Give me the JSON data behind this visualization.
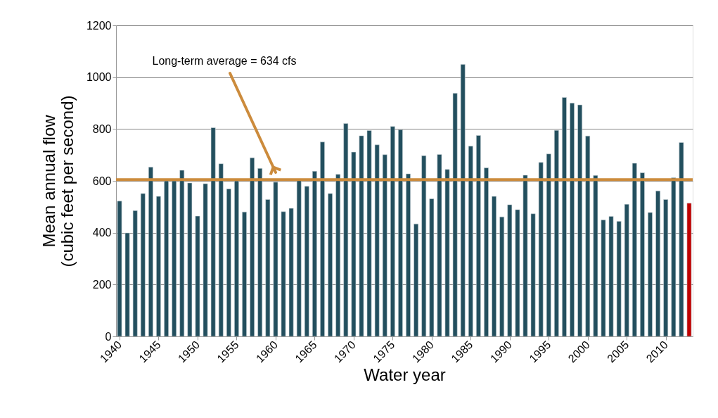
{
  "chart_data": {
    "type": "bar",
    "xlabel": "Water year",
    "ylabel": "Mean annual flow\n(cubic feet per second)",
    "x": [
      1940,
      1941,
      1942,
      1943,
      1944,
      1945,
      1946,
      1947,
      1948,
      1949,
      1950,
      1951,
      1952,
      1953,
      1954,
      1955,
      1956,
      1957,
      1958,
      1959,
      1960,
      1961,
      1962,
      1963,
      1964,
      1965,
      1966,
      1967,
      1968,
      1969,
      1970,
      1971,
      1972,
      1973,
      1974,
      1975,
      1976,
      1977,
      1978,
      1979,
      1980,
      1981,
      1982,
      1983,
      1984,
      1985,
      1986,
      1987,
      1988,
      1989,
      1990,
      1991,
      1992,
      1993,
      1994,
      1995,
      1996,
      1997,
      1998,
      1999,
      2000,
      2001,
      2002,
      2003,
      2004,
      2005,
      2006,
      2007,
      2008,
      2009,
      2010,
      2011,
      2012,
      2013
    ],
    "values": [
      522,
      399,
      485,
      551,
      653,
      540,
      600,
      600,
      641,
      592,
      464,
      589,
      805,
      666,
      569,
      600,
      480,
      689,
      648,
      528,
      595,
      481,
      494,
      603,
      579,
      637,
      750,
      551,
      625,
      821,
      711,
      774,
      794,
      739,
      701,
      810,
      797,
      627,
      434,
      697,
      531,
      702,
      644,
      938,
      1049,
      734,
      775,
      650,
      540,
      461,
      508,
      489,
      622,
      473,
      671,
      704,
      795,
      922,
      900,
      893,
      773,
      621,
      449,
      463,
      444,
      510,
      668,
      631,
      478,
      561,
      528,
      612,
      748,
      514
    ],
    "colors": [
      "#234f5e",
      "#234f5e",
      "#234f5e",
      "#234f5e",
      "#234f5e",
      "#234f5e",
      "#234f5e",
      "#234f5e",
      "#234f5e",
      "#234f5e",
      "#234f5e",
      "#234f5e",
      "#234f5e",
      "#234f5e",
      "#234f5e",
      "#234f5e",
      "#234f5e",
      "#234f5e",
      "#234f5e",
      "#234f5e",
      "#234f5e",
      "#234f5e",
      "#234f5e",
      "#234f5e",
      "#234f5e",
      "#234f5e",
      "#234f5e",
      "#234f5e",
      "#234f5e",
      "#234f5e",
      "#234f5e",
      "#234f5e",
      "#234f5e",
      "#234f5e",
      "#234f5e",
      "#234f5e",
      "#234f5e",
      "#234f5e",
      "#234f5e",
      "#234f5e",
      "#234f5e",
      "#234f5e",
      "#234f5e",
      "#234f5e",
      "#234f5e",
      "#234f5e",
      "#234f5e",
      "#234f5e",
      "#234f5e",
      "#234f5e",
      "#234f5e",
      "#234f5e",
      "#234f5e",
      "#234f5e",
      "#234f5e",
      "#234f5e",
      "#234f5e",
      "#234f5e",
      "#234f5e",
      "#234f5e",
      "#234f5e",
      "#234f5e",
      "#234f5e",
      "#234f5e",
      "#234f5e",
      "#234f5e",
      "#234f5e",
      "#234f5e",
      "#234f5e",
      "#234f5e",
      "#234f5e",
      "#234f5e",
      "#234f5e",
      "#c00000"
    ],
    "xlim": [
      1940,
      2013
    ],
    "xticks": [
      1940,
      1945,
      1950,
      1955,
      1960,
      1965,
      1970,
      1975,
      1980,
      1985,
      1990,
      1995,
      2000,
      2005,
      2010
    ],
    "ylim": [
      0,
      1200
    ],
    "yticks": [
      0,
      200,
      400,
      600,
      800,
      1000,
      1200
    ],
    "grid": "y",
    "ref_lines": [
      {
        "axis": "y",
        "value": 605,
        "color": "#cc8b3c"
      }
    ],
    "annotations": [
      "Long-term average = 634 cfs"
    ]
  }
}
